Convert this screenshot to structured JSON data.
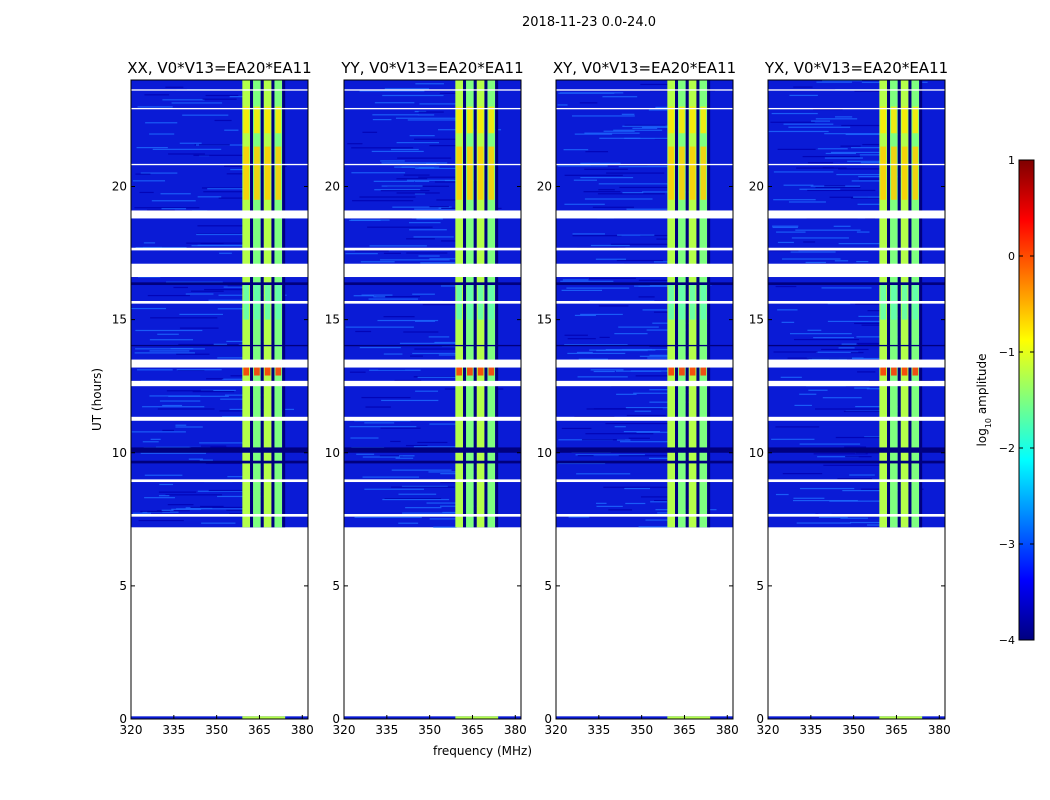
{
  "figure_title": "2018-11-23 0.0-24.0",
  "colorbar": {
    "label_prefix": "log",
    "label_sub": "10",
    "label_suffix": " amplitude",
    "ticks": [
      1,
      0,
      -1,
      -2,
      -3,
      -4
    ],
    "tick_labels": [
      "1",
      "0",
      "−1",
      "−2",
      "−3",
      "−4"
    ],
    "range": [
      -4,
      1
    ],
    "colormap": "jet",
    "colors": [
      "#00007f",
      "#0000ff",
      "#007fff",
      "#00ffff",
      "#7fff7f",
      "#ffff00",
      "#ff7f00",
      "#ff0000",
      "#7f0000"
    ]
  },
  "chart_data": [
    {
      "type": "heatmap",
      "title": "XX, V0*V13=EA20*EA11",
      "xlabel": "",
      "ylabel": "UT (hours)",
      "xlim": [
        320,
        382
      ],
      "ylim": [
        0,
        24
      ],
      "xticks": [
        320,
        335,
        350,
        365,
        380
      ],
      "xtick_labels": [
        "320",
        "335",
        "350",
        "365",
        "380"
      ],
      "yticks": [
        0,
        5,
        10,
        15,
        20
      ],
      "ytick_labels": [
        "0",
        "5",
        "10",
        "15",
        "20"
      ],
      "data_coverage_hours": [
        [
          0,
          0.1
        ],
        [
          7.2,
          24
        ]
      ],
      "high_band_mhz": [
        359,
        374
      ]
    },
    {
      "type": "heatmap",
      "title": "YY, V0*V13=EA20*EA11",
      "xlabel": "frequency (MHz)",
      "ylabel": "",
      "xlim": [
        320,
        382
      ],
      "ylim": [
        0,
        24
      ],
      "xticks": [
        320,
        335,
        350,
        365,
        380
      ],
      "xtick_labels": [
        "320",
        "335",
        "350",
        "365",
        "380"
      ],
      "yticks": [
        0,
        5,
        10,
        15,
        20
      ],
      "ytick_labels": [
        "0",
        "5",
        "10",
        "15",
        "20"
      ],
      "data_coverage_hours": [
        [
          0,
          0.1
        ],
        [
          7.2,
          24
        ]
      ],
      "high_band_mhz": [
        359,
        374
      ]
    },
    {
      "type": "heatmap",
      "title": "XY, V0*V13=EA20*EA11",
      "xlabel": "",
      "ylabel": "",
      "xlim": [
        320,
        382
      ],
      "ylim": [
        0,
        24
      ],
      "xticks": [
        320,
        335,
        350,
        365,
        380
      ],
      "xtick_labels": [
        "320",
        "335",
        "350",
        "365",
        "380"
      ],
      "yticks": [
        0,
        5,
        10,
        15,
        20
      ],
      "ytick_labels": [
        "0",
        "5",
        "10",
        "15",
        "20"
      ],
      "data_coverage_hours": [
        [
          0,
          0.1
        ],
        [
          7.2,
          24
        ]
      ],
      "high_band_mhz": [
        359,
        374
      ]
    },
    {
      "type": "heatmap",
      "title": "YX, V0*V13=EA20*EA11",
      "xlabel": "",
      "ylabel": "",
      "xlim": [
        320,
        382
      ],
      "ylim": [
        0,
        24
      ],
      "xticks": [
        320,
        335,
        350,
        365,
        380
      ],
      "xtick_labels": [
        "320",
        "335",
        "350",
        "365",
        "380"
      ],
      "yticks": [
        0,
        5,
        10,
        15,
        20
      ],
      "ytick_labels": [
        "0",
        "5",
        "10",
        "15",
        "20"
      ],
      "data_coverage_hours": [
        [
          0,
          0.1
        ],
        [
          7.2,
          24
        ]
      ],
      "high_band_mhz": [
        359,
        374
      ]
    }
  ]
}
